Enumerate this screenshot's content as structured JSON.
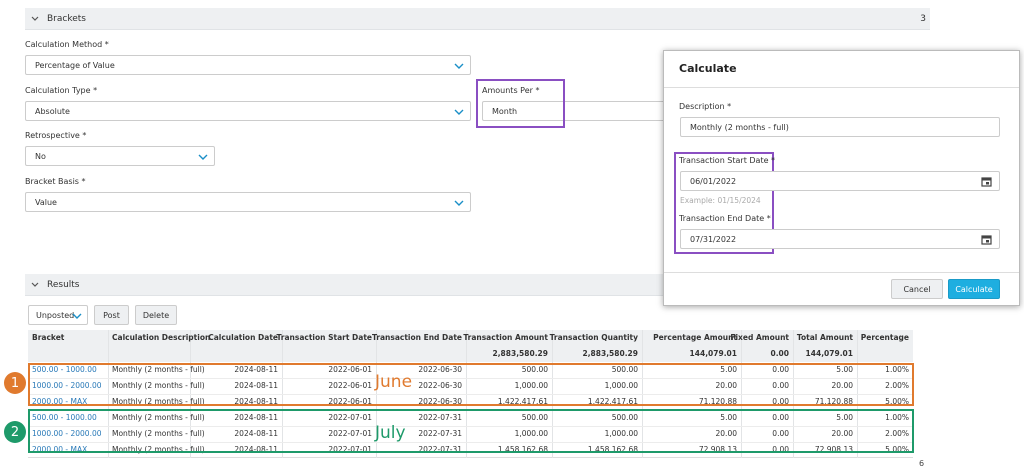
{
  "brackets_section": {
    "title": "Brackets",
    "count": "3"
  },
  "form": {
    "fields": [
      {
        "label": "Calculation Method *",
        "value": "Percentage of Value"
      },
      {
        "label": "Calculation Type *",
        "value": "Absolute"
      },
      {
        "label": "Amounts Per *",
        "value": "Month"
      },
      {
        "label": "Retrospective *",
        "value": "No"
      },
      {
        "label": "Bracket Basis *",
        "value": "Value"
      }
    ]
  },
  "results_section": {
    "title": "Results"
  },
  "toolbar": {
    "filter": "Unposted",
    "buttons": [
      "Post",
      "Delete"
    ]
  },
  "table": {
    "columns": [
      "Bracket",
      "Calculation Description",
      "Calculation Date",
      "Transaction Start Date",
      "Transaction End Date",
      "Transaction Amount",
      "Transaction Quantity",
      "Percentage Amount",
      "Fixed Amount",
      "Total Amount",
      "Percentage"
    ],
    "totals": [
      "2,883,580.29",
      "2,883,580.29",
      "144,079.01",
      "0.00",
      "144,079.01"
    ],
    "rows": [
      [
        "500.00 - 1000.00",
        "Monthly (2 months - full)",
        "2024-08-11",
        "2022-06-01",
        "2022-06-30",
        "500.00",
        "500.00",
        "5.00",
        "0.00",
        "5.00",
        "1.00%"
      ],
      [
        "1000.00 - 2000.00",
        "Monthly (2 months - full)",
        "2024-08-11",
        "2022-06-01",
        "2022-06-30",
        "1,000.00",
        "1,000.00",
        "20.00",
        "0.00",
        "20.00",
        "2.00%"
      ],
      [
        "2000.00 - MAX",
        "Monthly (2 months - full)",
        "2024-08-11",
        "2022-06-01",
        "2022-06-30",
        "1,422,417.61",
        "1,422,417.61",
        "71,120.88",
        "0.00",
        "71,120.88",
        "5.00%"
      ],
      [
        "500.00 - 1000.00",
        "Monthly (2 months - full)",
        "2024-08-11",
        "2022-07-01",
        "2022-07-31",
        "500.00",
        "500.00",
        "5.00",
        "0.00",
        "5.00",
        "1.00%"
      ],
      [
        "1000.00 - 2000.00",
        "Monthly (2 months - full)",
        "2024-08-11",
        "2022-07-01",
        "2022-07-31",
        "1,000.00",
        "1,000.00",
        "20.00",
        "0.00",
        "20.00",
        "2.00%"
      ],
      [
        "2000.00 - MAX",
        "Monthly (2 months - full)",
        "2024-08-11",
        "2022-07-01",
        "2022-07-31",
        "1,458,162.68",
        "1,458,162.68",
        "72,908.13",
        "0.00",
        "72,908.13",
        "5.00%"
      ]
    ]
  },
  "annotations": [
    {
      "marker": "1",
      "label": "June"
    },
    {
      "marker": "2",
      "label": "July"
    }
  ],
  "dialog": {
    "title": "Calculate",
    "fields": [
      {
        "label": "Description *",
        "value": "Monthly (2 months - full)"
      },
      {
        "label": "Transaction Start Date *",
        "value": "06/01/2022",
        "hint": "Example: 01/15/2024"
      },
      {
        "label": "Transaction End Date *",
        "value": "07/31/2022"
      }
    ],
    "buttons": [
      "Cancel",
      "Calculate"
    ]
  },
  "page_number": "6"
}
